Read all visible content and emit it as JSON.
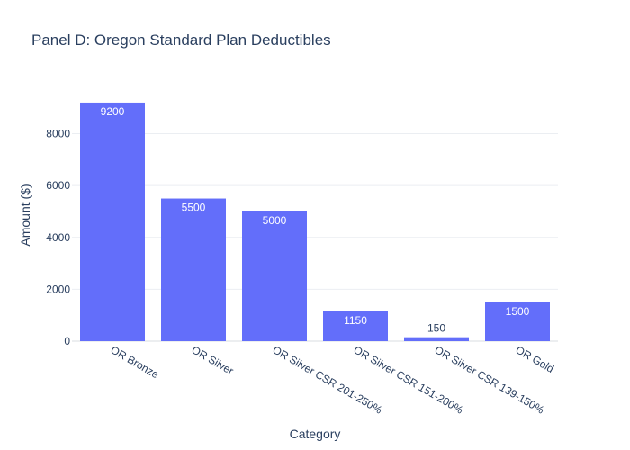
{
  "chart_data": {
    "type": "bar",
    "title": "Panel D: Oregon Standard Plan Deductibles",
    "xlabel": "Category",
    "ylabel": "Amount ($)",
    "categories": [
      "OR Bronze",
      "OR Silver",
      "OR Silver CSR 201-250%",
      "OR Silver CSR 151-200%",
      "OR Silver CSR 139-150%",
      "OR Gold"
    ],
    "values": [
      9200,
      5500,
      5000,
      1150,
      150,
      1500
    ],
    "data_labels": [
      "9200",
      "5500",
      "5000",
      "1150",
      "150",
      "1500"
    ],
    "yticks": [
      0,
      2000,
      4000,
      6000,
      8000
    ],
    "ytick_labels": [
      "0",
      "2000",
      "4000",
      "6000",
      "8000"
    ],
    "ylim": [
      0,
      9684
    ],
    "grid": true,
    "legend": "none",
    "bar_color": "#636efa"
  }
}
